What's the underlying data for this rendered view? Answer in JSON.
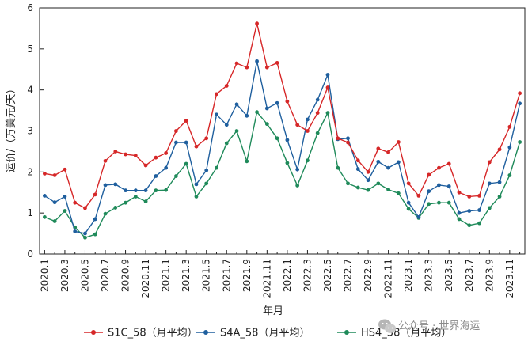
{
  "chart_data": {
    "type": "line",
    "title": "",
    "xlabel": "年月",
    "ylabel": "运价/（万美元/天）",
    "ylim": [
      0,
      6
    ],
    "yticks": [
      0,
      1,
      2,
      3,
      4,
      5,
      6
    ],
    "x": [
      "2020.1",
      "2020.2",
      "2020.3",
      "2020.4",
      "2020.5",
      "2020.6",
      "2020.7",
      "2020.8",
      "2020.9",
      "2020.10",
      "2020.11",
      "2020.12",
      "2021.1",
      "2021.2",
      "2021.3",
      "2021.4",
      "2021.5",
      "2021.6",
      "2021.7",
      "2021.8",
      "2021.9",
      "2021.10",
      "2021.11",
      "2021.12",
      "2022.1",
      "2022.2",
      "2022.3",
      "2022.4",
      "2022.5",
      "2022.6",
      "2022.7",
      "2022.8",
      "2022.9",
      "2022.10",
      "2022.11",
      "2022.12",
      "2023.1",
      "2023.2",
      "2023.3",
      "2023.4",
      "2023.5",
      "2023.6",
      "2023.7",
      "2023.8",
      "2023.9",
      "2023.10",
      "2023.11",
      "2023.12"
    ],
    "xtick_labels": [
      "2020.1",
      "2020.3",
      "2020.5",
      "2020.7",
      "2020.9",
      "2020.11",
      "2021.1",
      "2021.3",
      "2021.5",
      "2021.7",
      "2021.9",
      "2021.11",
      "2022.1",
      "2022.3",
      "2022.5",
      "2022.7",
      "2022.9",
      "2022.11",
      "2023.1",
      "2023.3",
      "2023.5",
      "2023.7",
      "2023.9",
      "2023.11"
    ],
    "grid": false,
    "legend": "bottom",
    "series": [
      {
        "name": "S1C_58（月平均）",
        "color": "#d62728",
        "values": [
          1.96,
          1.92,
          2.06,
          1.25,
          1.12,
          1.45,
          2.27,
          2.5,
          2.43,
          2.4,
          2.16,
          2.35,
          2.46,
          3.0,
          3.25,
          2.62,
          2.82,
          3.9,
          4.1,
          4.65,
          4.55,
          5.62,
          4.55,
          4.66,
          3.72,
          3.15,
          3.0,
          3.44,
          4.06,
          2.82,
          2.72,
          2.28,
          2.0,
          2.57,
          2.48,
          2.73,
          1.72,
          1.42,
          1.93,
          2.1,
          2.2,
          1.5,
          1.4,
          1.42,
          2.24,
          2.55,
          3.1,
          3.92
        ]
      },
      {
        "name": "S4A_58（月平均）",
        "color": "#1f5f9e",
        "values": [
          1.42,
          1.26,
          1.4,
          0.55,
          0.5,
          0.85,
          1.68,
          1.7,
          1.55,
          1.55,
          1.55,
          1.9,
          2.1,
          2.72,
          2.72,
          1.7,
          2.04,
          3.4,
          3.15,
          3.65,
          3.37,
          4.7,
          3.55,
          3.68,
          2.78,
          2.06,
          3.28,
          3.76,
          4.37,
          2.8,
          2.82,
          2.07,
          1.8,
          2.25,
          2.1,
          2.24,
          1.25,
          0.9,
          1.53,
          1.68,
          1.65,
          1.0,
          1.05,
          1.07,
          1.72,
          1.75,
          2.6,
          3.67
        ]
      },
      {
        "name": "HS4_38（月平均）",
        "color": "#1f8a5a",
        "values": [
          0.9,
          0.8,
          1.05,
          0.65,
          0.4,
          0.48,
          0.98,
          1.13,
          1.25,
          1.4,
          1.28,
          1.55,
          1.56,
          1.9,
          2.2,
          1.4,
          1.72,
          2.1,
          2.7,
          3.0,
          2.26,
          3.46,
          3.17,
          2.82,
          2.22,
          1.67,
          2.28,
          2.95,
          3.44,
          2.1,
          1.72,
          1.62,
          1.56,
          1.72,
          1.57,
          1.48,
          1.1,
          0.88,
          1.22,
          1.25,
          1.25,
          0.85,
          0.7,
          0.75,
          1.12,
          1.4,
          1.92,
          2.73
        ]
      }
    ]
  },
  "watermark": {
    "text": "公众号 · 世界海运",
    "icon": "wechat-icon"
  }
}
